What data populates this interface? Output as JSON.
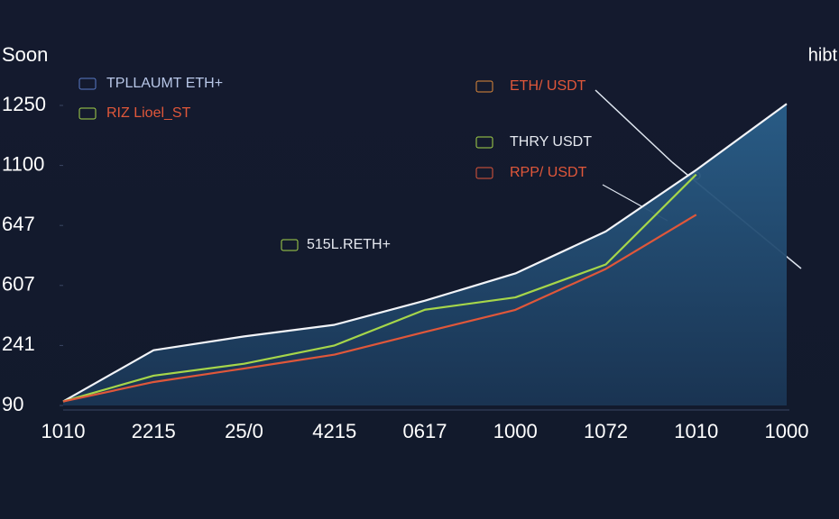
{
  "chart_data": {
    "type": "line",
    "title": "Soon",
    "subtitle": "hibt",
    "categories": [
      "1010",
      "2215",
      "25/0",
      "4215",
      "0617",
      "1000",
      "1072",
      "1010",
      "1000"
    ],
    "ylim": [
      90,
      1400
    ],
    "yticks": [
      1250,
      1100,
      647,
      607,
      241,
      90
    ],
    "series": [
      {
        "name": "ETH/ USDT",
        "color": "#f2f4f8",
        "values": [
          100,
          229,
          296,
          367,
          514,
          615,
          643,
          1066,
          1254
        ]
      },
      {
        "name": "THRY USDT",
        "color": "#a6d64a",
        "values": [
          100,
          165,
          195,
          241,
          459,
          534,
          621,
          1032,
          null
        ]
      },
      {
        "name": "RPP/ USDT",
        "color": "#e0573a",
        "values": [
          100,
          149,
          183,
          218,
          323,
          458,
          618,
          728,
          null
        ]
      }
    ],
    "annotations": [
      "TPLLAUMT ETH+",
      "RIZ Lioel_ST",
      "515L.RETH+"
    ],
    "area": true
  }
}
